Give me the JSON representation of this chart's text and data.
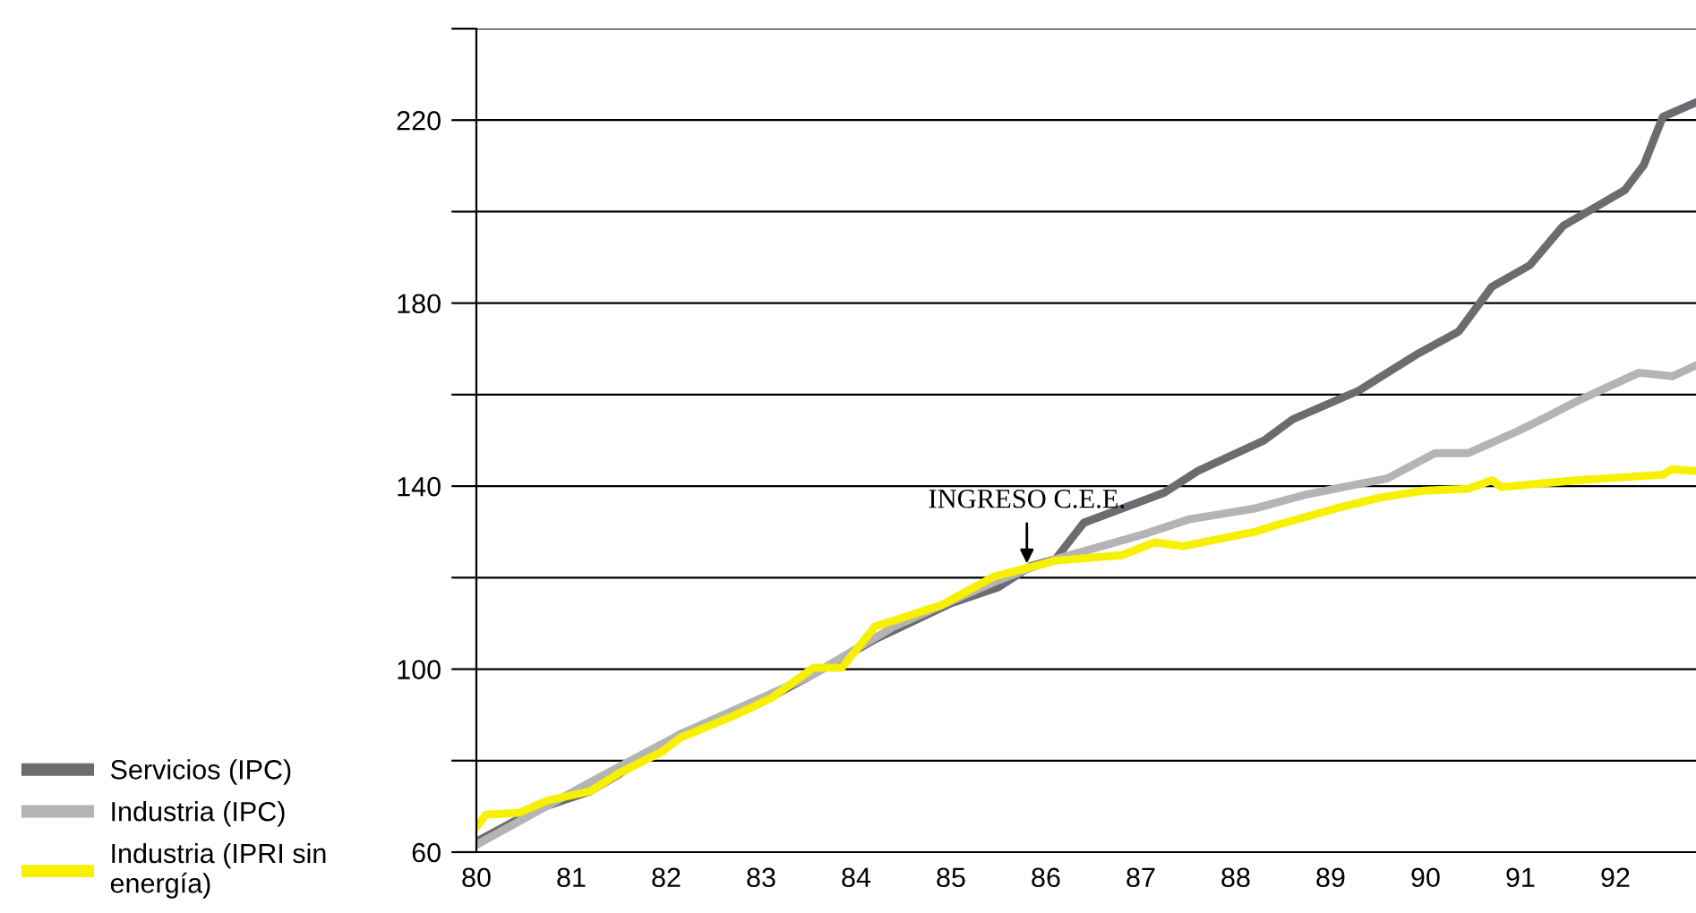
{
  "chart_data": {
    "type": "line",
    "xlim": [
      80,
      92.85
    ],
    "xticks": [
      80,
      81,
      82,
      83,
      84,
      85,
      86,
      87,
      88,
      89,
      90,
      91,
      92
    ],
    "ylim": [
      60,
      240
    ],
    "yticks": [
      60,
      {
        "value": 80,
        "label": null
      },
      100,
      {
        "value": 120,
        "label": null
      },
      140,
      {
        "value": 160,
        "label": null
      },
      180,
      {
        "value": 200,
        "label": null
      },
      220,
      {
        "value": 240,
        "label": null
      }
    ],
    "grid": "y",
    "legend": "bottom left",
    "line_style": "solid",
    "marker": "none",
    "annotations": [
      {
        "text": "INGRESO C.E.E.",
        "x": 85.8,
        "y": 122
      }
    ],
    "series": [
      {
        "name": "Servicios (IPC)",
        "color": "#6b6b70",
        "x": [
          80,
          80.64,
          81.2,
          81.5,
          82.15,
          82.9,
          83.5,
          84.2,
          85,
          85.5,
          85.85,
          86.1,
          86.4,
          87.25,
          87.6,
          88.3,
          88.6,
          89.3,
          89.9,
          90.35,
          90.7,
          91.1,
          91.45,
          92.1,
          92.3,
          92.5,
          92.85
        ],
        "values": [
          62.3,
          69.4,
          73.3,
          77,
          85.8,
          91.7,
          98.3,
          106.5,
          114.4,
          117.9,
          122.6,
          124,
          132,
          138.6,
          143.3,
          150,
          154.6,
          160.9,
          168.7,
          173.8,
          183.6,
          188.3,
          196.9,
          204.7,
          210.2,
          220.7,
          223.9
        ]
      },
      {
        "name": "Industria (IPC)",
        "color": "#b4b4b4",
        "x": [
          80,
          81.2,
          82.15,
          83.5,
          84.4,
          85.45,
          85.8,
          86.1,
          87.05,
          87.5,
          88.2,
          88.75,
          89.6,
          90.1,
          90.45,
          91,
          91.3,
          91.6,
          92.25,
          92.6,
          92.85
        ],
        "values": [
          61.6,
          75.3,
          85.8,
          98.3,
          109.3,
          119,
          121.8,
          124,
          129.6,
          132.7,
          135.1,
          138.2,
          141.7,
          147.2,
          147.2,
          152.3,
          155.4,
          158.6,
          164.8,
          164,
          166.4
        ]
      },
      {
        "name": "Industria (IPRI sin\nenergía)",
        "color": "#f7f000",
        "x": [
          80,
          80.1,
          80.45,
          80.75,
          81.2,
          81.5,
          81.95,
          82.15,
          82.7,
          83.1,
          83.55,
          83.85,
          84.2,
          84.9,
          85.45,
          86.1,
          86.8,
          87.15,
          87.45,
          88.2,
          88.45,
          89.05,
          89.5,
          89.98,
          90.45,
          90.7,
          90.8,
          91.6,
          92.5,
          92.6,
          92.85
        ],
        "values": [
          65.5,
          68.2,
          68.6,
          71.3,
          73.3,
          77.2,
          81.9,
          85,
          89.7,
          93.6,
          100.3,
          100.3,
          109.3,
          114,
          120.2,
          123.7,
          124.9,
          127.7,
          126.9,
          130,
          131.6,
          135.1,
          137.4,
          139,
          139.4,
          141.3,
          139.8,
          141.3,
          142.5,
          143.7,
          143.3
        ]
      }
    ]
  }
}
